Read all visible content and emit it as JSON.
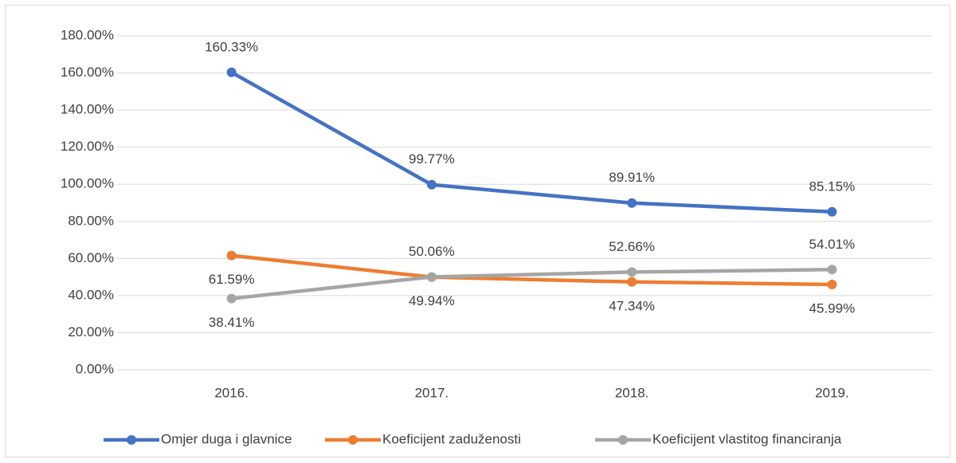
{
  "chart_data": {
    "type": "line",
    "categories": [
      "2016.",
      "2017.",
      "2018.",
      "2019."
    ],
    "series": [
      {
        "name": "Omjer duga i glavnice",
        "color": "#4472c4",
        "values": [
          160.33,
          99.77,
          89.91,
          85.15
        ],
        "value_labels": [
          "160.33%",
          "99.77%",
          "89.91%",
          "85.15%"
        ]
      },
      {
        "name": "Koeficijent zaduženosti",
        "color": "#ed7d31",
        "values": [
          61.59,
          49.94,
          47.34,
          45.99
        ],
        "value_labels": [
          "61.59%",
          "49.94%",
          "47.34%",
          "45.99%"
        ]
      },
      {
        "name": "Koeficijent vlastitog financiranja",
        "color": "#a5a5a5",
        "values": [
          38.41,
          50.06,
          52.66,
          54.01
        ],
        "value_labels": [
          "38.41%",
          "50.06%",
          "52.66%",
          "54.01%"
        ]
      }
    ],
    "ylim": [
      0,
      180
    ],
    "yticks": [
      {
        "value": 0,
        "label": "0.00%"
      },
      {
        "value": 20,
        "label": "20.00%"
      },
      {
        "value": 40,
        "label": "40.00%"
      },
      {
        "value": 60,
        "label": "60.00%"
      },
      {
        "value": 80,
        "label": "80.00%"
      },
      {
        "value": 100,
        "label": "100.00%"
      },
      {
        "value": 120,
        "label": "120.00%"
      },
      {
        "value": 140,
        "label": "140.00%"
      },
      {
        "value": 160,
        "label": "160.00%"
      },
      {
        "value": 180,
        "label": "180.00%"
      }
    ],
    "grid": true,
    "legend": "bottom"
  }
}
